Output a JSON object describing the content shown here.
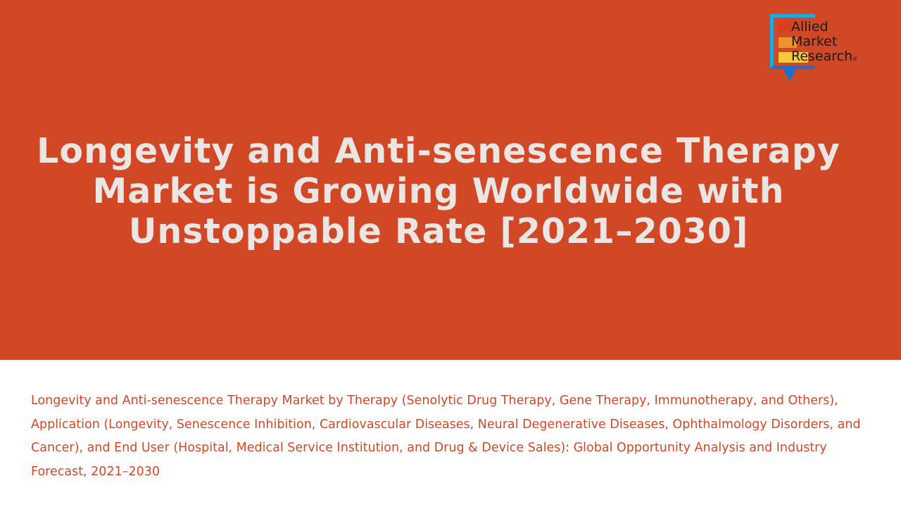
{
  "title": "Longevity and Anti-senescence Therapy Market is Growing Worldwide with Unstoppable Rate [2021–2030]",
  "logo": {
    "lines": [
      "Allied",
      "Market",
      "Research"
    ],
    "mark": "®"
  },
  "description": "Longevity and Anti-senescence Therapy Market by Therapy (Senolytic Drug Therapy, Gene Therapy, Immunotherapy, and Others), Application (Longevity, Senescence Inhibition, Cardiovascular Diseases, Neural Degenerative Diseases, Ophthalmology Disorders, and Cancer), and End User (Hospital, Medical Service Institution, and Drug & Device Sales): Global Opportunity Analysis and Industry Forecast, 2021–2030",
  "colors": {
    "banner": "#d14826",
    "text": "#ebe6e4",
    "accent": "#d14826"
  }
}
